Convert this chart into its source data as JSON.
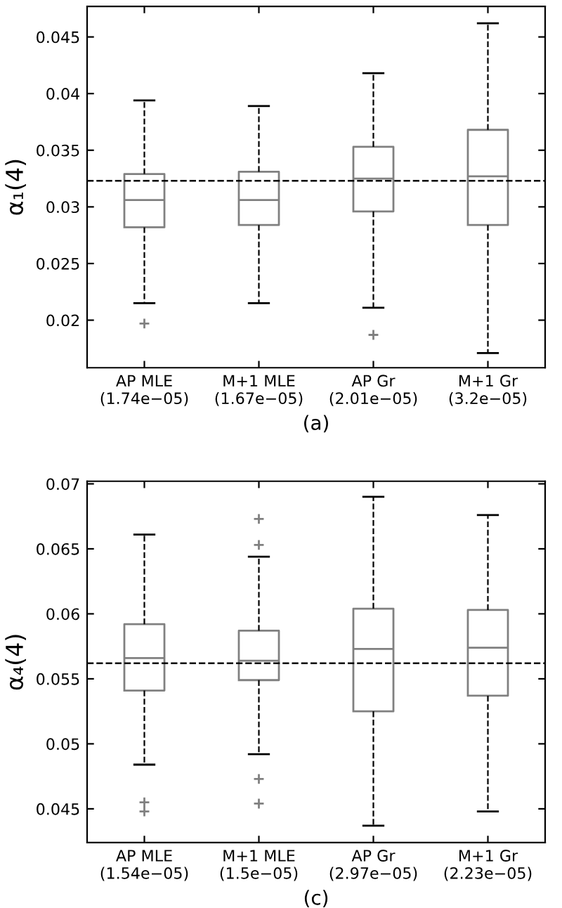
{
  "chart_data": [
    {
      "type": "box",
      "xlabel": "(a)",
      "ylabel": "α₁(4)",
      "categories": [
        "AP MLE\n(1.74e−05)",
        "M+1 MLE\n(1.67e−05)",
        "AP Gr\n(2.01e−05)",
        "M+1 Gr\n(3.2e−05)"
      ],
      "boxes": [
        {
          "low": 0.0215,
          "q1": 0.0282,
          "median": 0.0306,
          "q3": 0.0329,
          "high": 0.0394,
          "outliers": [
            0.0197
          ]
        },
        {
          "low": 0.0215,
          "q1": 0.0284,
          "median": 0.0306,
          "q3": 0.0331,
          "high": 0.0389
        },
        {
          "low": 0.0211,
          "q1": 0.0296,
          "median": 0.0325,
          "q3": 0.0353,
          "high": 0.0418,
          "outliers": [
            0.0187
          ]
        },
        {
          "low": 0.0171,
          "q1": 0.0284,
          "median": 0.0327,
          "q3": 0.0368,
          "high": 0.0462
        }
      ],
      "color": "#808080",
      "ylim": [
        0.0158,
        0.0477
      ],
      "yticks": [
        0.02,
        0.025,
        0.03,
        0.035,
        0.04,
        0.045
      ],
      "ref_lines": [
        {
          "axis": "y",
          "value": 0.0323,
          "color": "#000000",
          "line_style": "dashed"
        }
      ],
      "grid": false,
      "legend": false
    },
    {
      "type": "box",
      "xlabel": "(c)",
      "ylabel": "α₄(4)",
      "categories": [
        "AP MLE\n(1.54e−05)",
        "M+1 MLE\n(1.5e−05)",
        "AP Gr\n(2.97e−05)",
        "M+1 Gr\n(2.23e−05)"
      ],
      "boxes": [
        {
          "low": 0.0484,
          "q1": 0.0541,
          "median": 0.0566,
          "q3": 0.0592,
          "high": 0.0661,
          "outliers": [
            0.0455,
            0.0448
          ]
        },
        {
          "low": 0.0492,
          "q1": 0.0549,
          "median": 0.0564,
          "q3": 0.0587,
          "high": 0.0644,
          "outliers": [
            0.0673,
            0.0653,
            0.0473,
            0.0454
          ]
        },
        {
          "low": 0.0437,
          "q1": 0.0525,
          "median": 0.0573,
          "q3": 0.0604,
          "high": 0.069
        },
        {
          "low": 0.0448,
          "q1": 0.0537,
          "median": 0.0574,
          "q3": 0.0603,
          "high": 0.0676
        }
      ],
      "color": "#808080",
      "ylim": [
        0.0424,
        0.0702
      ],
      "yticks": [
        0.045,
        0.05,
        0.055,
        0.06,
        0.065,
        0.07
      ],
      "ref_lines": [
        {
          "axis": "y",
          "value": 0.0562,
          "color": "#000000",
          "line_style": "dashed"
        }
      ],
      "grid": false,
      "legend": false
    }
  ]
}
